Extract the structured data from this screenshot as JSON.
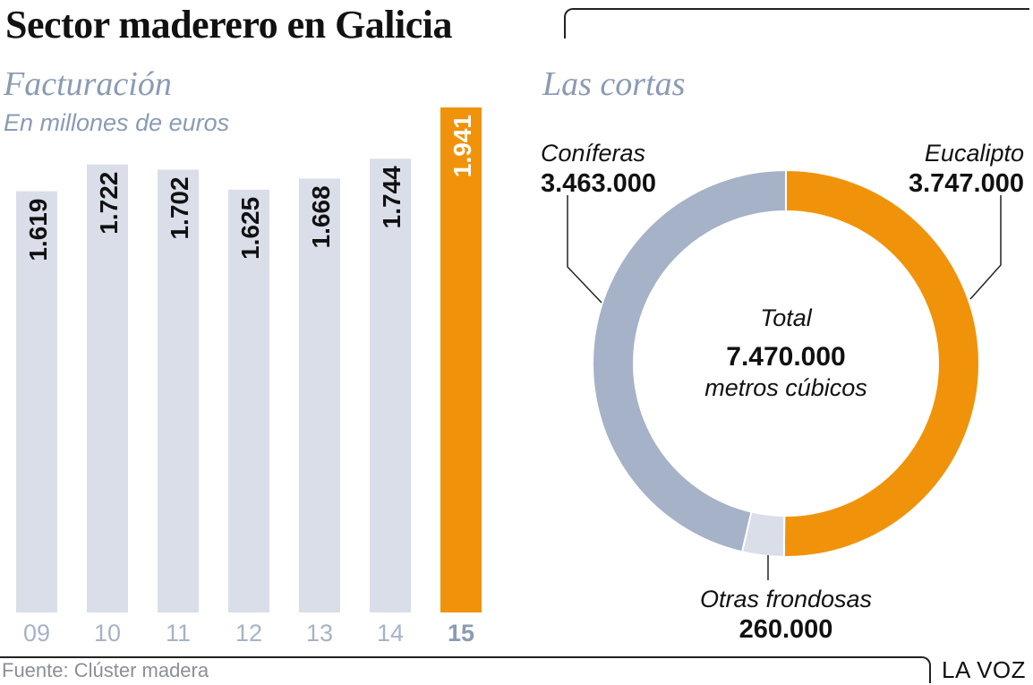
{
  "header": {
    "title": "Sector maderero en Galicia"
  },
  "footer": {
    "source": "Fuente: Clúster madera",
    "brand": "LA VOZ"
  },
  "colors": {
    "bar": "#d9dee8",
    "highlight": "#f0930a",
    "conifer": "#a6b2c8",
    "other": "#d9dee8",
    "title_blue": "#8a9bb4"
  },
  "chart_data": [
    {
      "type": "bar",
      "title": "Facturación",
      "subtitle": "En millones de euros",
      "categories": [
        "09",
        "10",
        "11",
        "12",
        "13",
        "14",
        "15"
      ],
      "values": [
        1619,
        1722,
        1702,
        1625,
        1668,
        1744,
        1941
      ],
      "value_labels": [
        "1.619",
        "1.722",
        "1.702",
        "1.625",
        "1.668",
        "1.744",
        "1.941"
      ],
      "highlight_index": 6,
      "ylim": [
        0,
        1941
      ],
      "grid": false
    },
    {
      "type": "pie",
      "donut": true,
      "title": "Las cortas",
      "slices": [
        {
          "name": "Eucalipto",
          "value": 3747000,
          "label": "3.747.000",
          "color": "#f0930a"
        },
        {
          "name": "Otras frondosas",
          "value": 260000,
          "label": "260.000",
          "color": "#d9dee8"
        },
        {
          "name": "Coníferas",
          "value": 3463000,
          "label": "3.463.000",
          "color": "#a6b2c8"
        }
      ],
      "center": {
        "caption": "Total",
        "value": "7.470.000",
        "unit": "metros cúbicos"
      }
    }
  ]
}
